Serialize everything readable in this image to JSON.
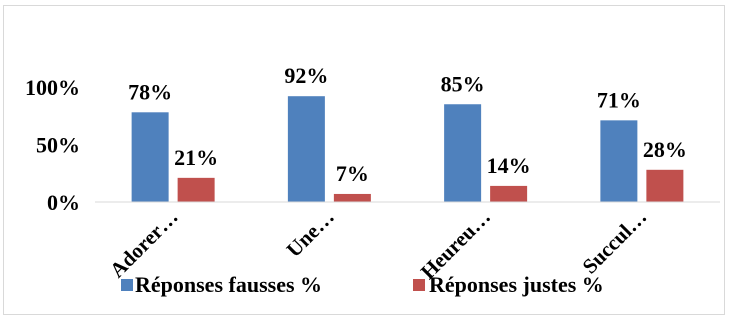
{
  "chart_data": {
    "type": "bar",
    "categories": [
      "Adorer…",
      "Une…",
      "Heureu…",
      "Succul…"
    ],
    "series": [
      {
        "name": "Réponses fausses %",
        "values": [
          78,
          92,
          85,
          71
        ],
        "labels": [
          "78%",
          "92%",
          "85%",
          "71%"
        ],
        "color": "#4f81bd"
      },
      {
        "name": "Réponses justes %",
        "values": [
          21,
          7,
          14,
          28
        ],
        "labels": [
          "21%",
          "7%",
          "14%",
          "28%"
        ],
        "color": "#c0504d"
      }
    ],
    "yticks": [
      {
        "value": 0,
        "label": "0%"
      },
      {
        "value": 50,
        "label": "50%"
      },
      {
        "value": 100,
        "label": "100%"
      }
    ],
    "ylim": [
      0,
      100
    ],
    "legend_position": "bottom",
    "grid": false,
    "axis_color": "#d9d9d9"
  }
}
